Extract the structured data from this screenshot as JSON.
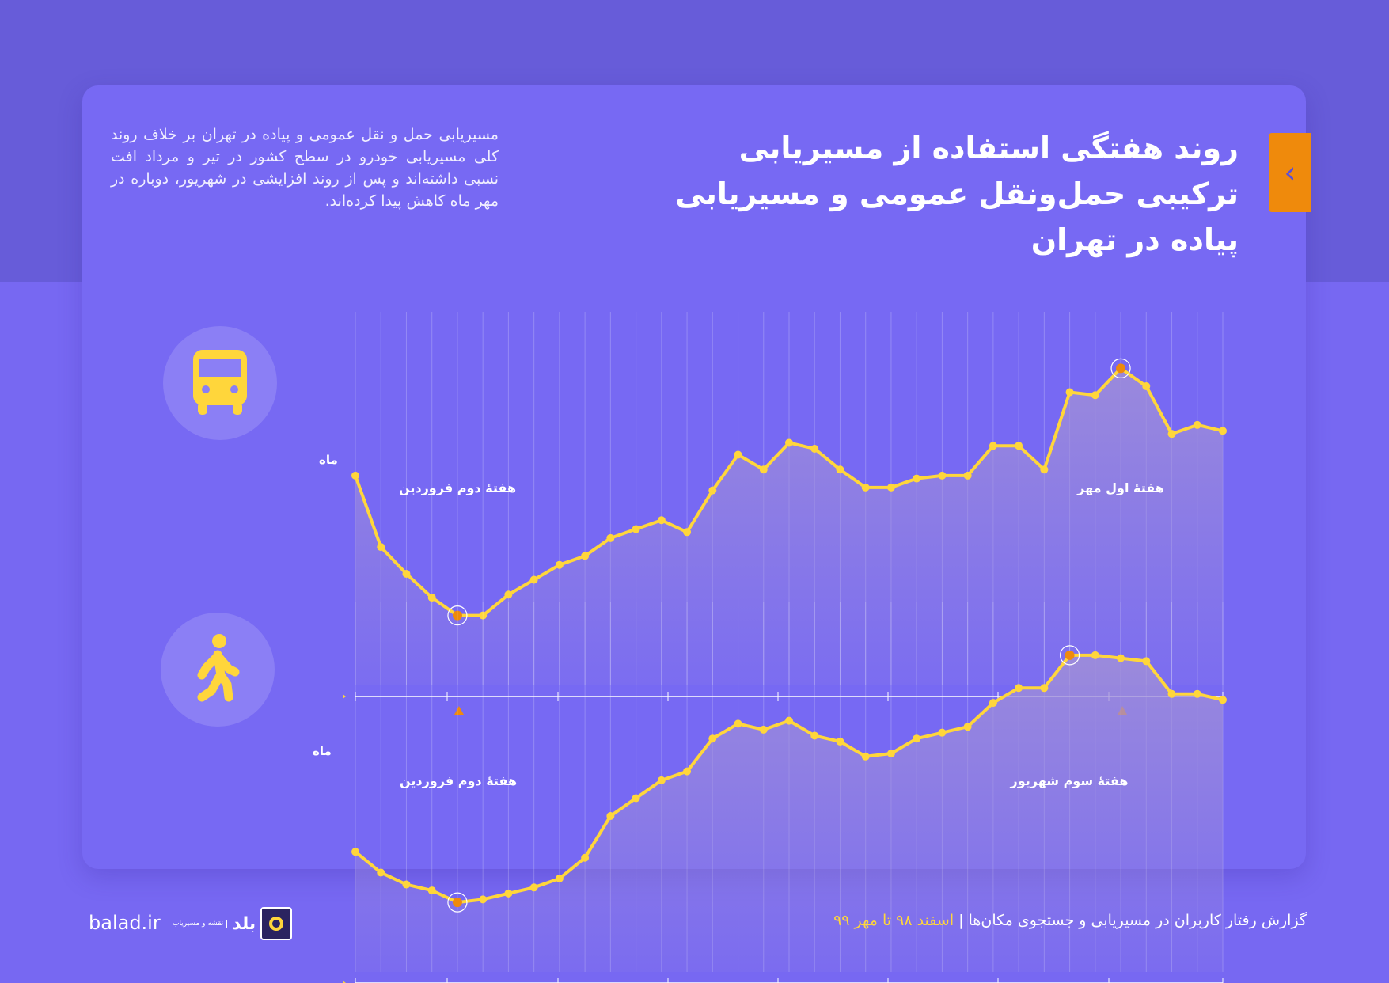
{
  "header": {
    "title": "روند هفتگی استفاده از مسیریابی ترکیبی حمل‌ونقل عمومی و مسیریابی پیاده در تهران",
    "description": "مسیریابی حمل و نقل عمومی و پیاده در تهران بر خلاف روند کلی مسیریابی خودرو در سطح کشور در تیر و مرداد افت نسبی داشته‌اند و پس از روند افزایشی در شهریور، دوباره در مهر ماه کاهش پیدا کرده‌اند."
  },
  "colors": {
    "line": "#ffd63b",
    "highlight": "#ef8a0c",
    "fill": "#a08fd8"
  },
  "chart_data": [
    {
      "type": "line",
      "title": "public-transport",
      "icon": "bus-icon",
      "xlabel": "ماه",
      "values": [
        56,
        32,
        23,
        15,
        9,
        9,
        16,
        21,
        26,
        29,
        35,
        38,
        41,
        37,
        51,
        63,
        58,
        67,
        65,
        58,
        52,
        52,
        55,
        56,
        56,
        66,
        66,
        58,
        84,
        83,
        92,
        86,
        70,
        73,
        71
      ],
      "annotations": [
        {
          "index": 4,
          "label": "هفتهٔ دوم فروردین"
        },
        {
          "index": 30,
          "label": "هفتهٔ اول مهر"
        }
      ]
    },
    {
      "type": "line",
      "title": "walking",
      "icon": "walking-person-icon",
      "xlabel": "ماه",
      "values": [
        28,
        21,
        17,
        15,
        11,
        12,
        14,
        16,
        19,
        26,
        40,
        46,
        52,
        55,
        66,
        71,
        69,
        72,
        67,
        65,
        60,
        61,
        66,
        68,
        70,
        78,
        83,
        83,
        94,
        94,
        93,
        92,
        81,
        81,
        79
      ],
      "annotations": [
        {
          "index": 4,
          "label": "هفتهٔ دوم فروردین"
        },
        {
          "index": 28,
          "label": "هفتهٔ سوم شهریور"
        }
      ]
    }
  ],
  "footer": {
    "report": "گزارش رفتار کاربران در مسیریابی و جستجوی مکان‌ها",
    "separator": "|",
    "period": "اسفند ۹۸ تا مهر ۹۹",
    "site": "balad.ir",
    "brand": "بلد",
    "brand_sub": "نقشه و مسیریاب"
  }
}
